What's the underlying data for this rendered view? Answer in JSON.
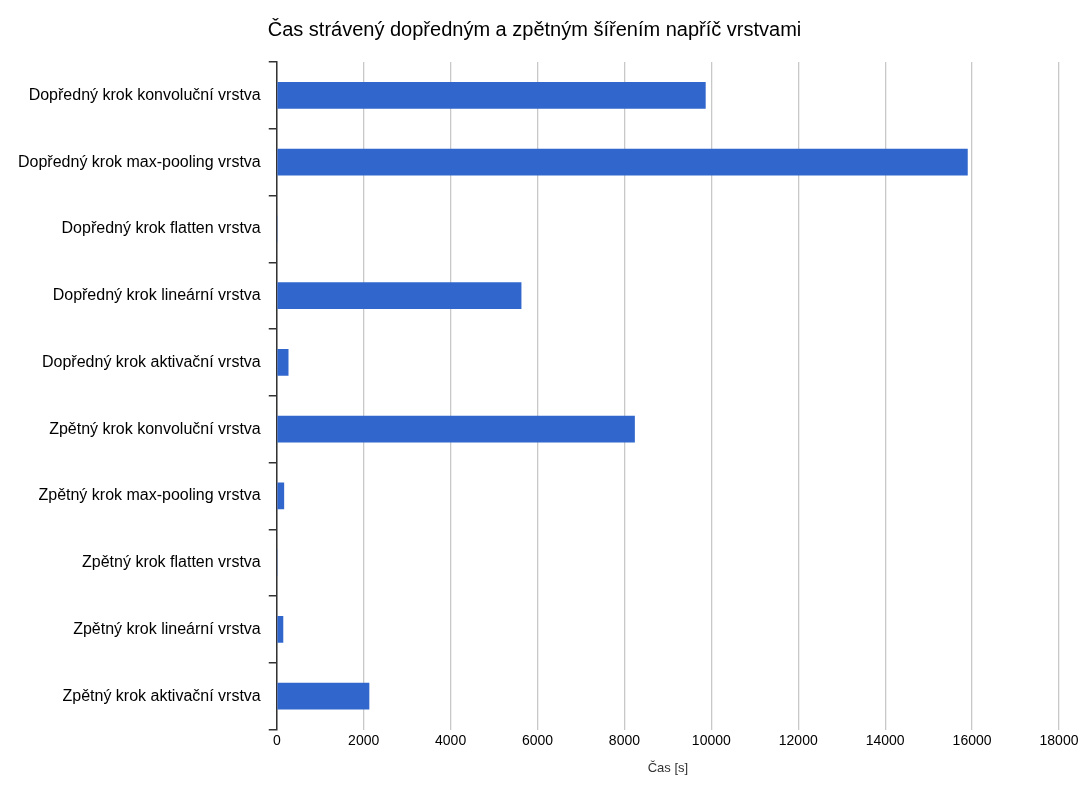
{
  "chart_data": {
    "type": "bar",
    "orientation": "horizontal",
    "title": "Čas strávený dopředným a zpětným šířením napříč vrstvami",
    "xlabel": "Čas [s]",
    "categories": [
      "Dopředný krok konvoluční vrstva",
      "Dopředný krok max-pooling vrstva",
      "Dopředný krok flatten vrstva",
      "Dopředný krok lineární vrstva",
      "Dopředný krok aktivační vrstva",
      "Zpětný krok konvoluční vrstva",
      "Zpětný krok max-pooling vrstva",
      "Zpětný krok flatten vrstva",
      "Zpětný krok lineární vrstva",
      "Zpětný krok aktivační vrstva"
    ],
    "values": [
      9870,
      15900,
      20,
      5630,
      270,
      8240,
      170,
      20,
      150,
      2130
    ],
    "color": "#3166cc",
    "xlim": [
      0,
      18000
    ],
    "xticks": [
      0,
      2000,
      4000,
      6000,
      8000,
      10000,
      12000,
      14000,
      16000,
      18000
    ],
    "grid": "x",
    "legend": false
  }
}
